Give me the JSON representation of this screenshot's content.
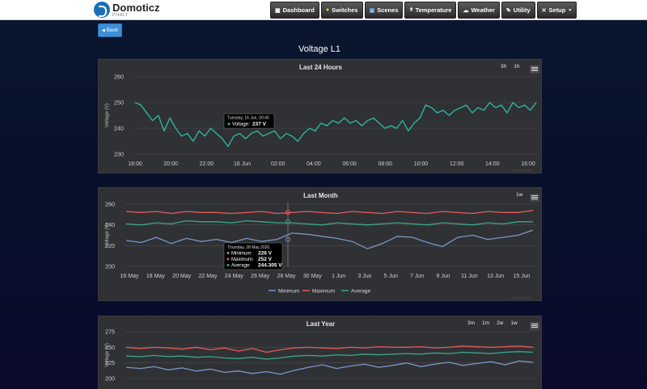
{
  "app": {
    "name": "Domoticz",
    "subtitle": "PI4ALT"
  },
  "nav": [
    {
      "label": "Dashboard",
      "icon": "dashboard-icon"
    },
    {
      "label": "Switches",
      "icon": "lightbulb-icon"
    },
    {
      "label": "Scenes",
      "icon": "scenes-icon"
    },
    {
      "label": "Temperature",
      "icon": "thermometer-icon"
    },
    {
      "label": "Weather",
      "icon": "cloud-icon"
    },
    {
      "label": "Utility",
      "icon": "utility-icon"
    },
    {
      "label": "Setup",
      "icon": "wrench-icon"
    }
  ],
  "back_label": "Back",
  "page_title": "Voltage L1",
  "panels": {
    "day": {
      "title": "Last 24 Hours",
      "ranges": [
        "3h",
        "1h"
      ],
      "credit": "Domoticz.com"
    },
    "month": {
      "title": "Last Month",
      "ranges": [
        "1w"
      ],
      "credit": "Domoticz.com"
    },
    "year": {
      "title": "Last Year",
      "ranges": [
        "3m",
        "1m",
        "2w",
        "1w"
      ]
    }
  },
  "chart_data": [
    {
      "type": "line",
      "title": "Last 24 Hours",
      "ylabel": "Voltage (V)",
      "ylim": [
        230,
        260
      ],
      "yticks": [
        260,
        250,
        240,
        230
      ],
      "xtick_labels": [
        "18:00",
        "20:00",
        "22:00",
        "16 Jun",
        "02:00",
        "04:00",
        "06:00",
        "08:00",
        "10:00",
        "12:00",
        "14:00",
        "16:00"
      ],
      "series": [
        {
          "color": "#2bb3a3",
          "values": [
            250,
            249,
            246,
            243,
            245,
            239,
            244,
            240,
            237,
            238,
            235,
            239,
            237,
            240,
            238,
            236,
            233,
            237,
            238,
            236,
            238,
            239,
            237,
            238,
            239,
            236,
            238,
            237,
            235,
            238,
            240,
            239,
            242,
            241,
            243,
            242,
            244,
            242,
            243,
            241,
            243,
            244,
            242,
            240,
            241,
            240,
            243,
            239,
            242,
            244,
            249,
            248,
            246,
            247,
            245,
            247,
            248,
            249,
            246,
            248,
            247,
            250,
            248,
            249,
            246,
            250,
            248,
            249,
            247,
            250
          ]
        }
      ],
      "tooltip": {
        "title": "Tuesday, 16 Jun, 00:40",
        "label": "Voltage:",
        "value": "237 V"
      }
    },
    {
      "type": "line",
      "title": "Last Month",
      "ylabel": "Voltage (V)",
      "ylim": [
        200,
        260
      ],
      "yticks": [
        260,
        240,
        220,
        200
      ],
      "xtick_labels": [
        "16 May",
        "18 May",
        "20 May",
        "22 May",
        "24 May",
        "26 May",
        "28 May",
        "30 May",
        "1 Jun",
        "3 Jun",
        "5 Jun",
        "7 Jun",
        "9 Jun",
        "11 Jun",
        "13 Jun",
        "15 Jun"
      ],
      "legend": [
        "Minimum",
        "Maximum",
        "Average"
      ],
      "series": [
        {
          "name": "Minimum",
          "color": "#7b96c8",
          "values": [
            225,
            223,
            228,
            222,
            227,
            224,
            226,
            223,
            227,
            224,
            226,
            232,
            231,
            229,
            227,
            224,
            217,
            222,
            229,
            228,
            223,
            219,
            228,
            230,
            226,
            228,
            230,
            235
          ]
        },
        {
          "name": "Maximum",
          "color": "#e5595b",
          "values": [
            253,
            252,
            253,
            251,
            253,
            252,
            252,
            251,
            252,
            253,
            251,
            252,
            253,
            252,
            251,
            253,
            252,
            251,
            253,
            252,
            251,
            253,
            252,
            251,
            253,
            252,
            252,
            254
          ]
        },
        {
          "name": "Average",
          "color": "#3aa88d",
          "values": [
            241,
            240,
            242,
            241,
            244,
            243,
            243,
            242,
            244,
            243,
            242,
            242,
            241,
            240,
            242,
            241,
            240,
            241,
            242,
            241,
            240,
            242,
            241,
            240,
            242,
            241,
            243,
            243
          ]
        }
      ],
      "tooltip": {
        "title": "Thursday, 28 May 2026",
        "rows": [
          {
            "label": "Minimum:",
            "value": "226 V"
          },
          {
            "label": "Maximum:",
            "value": "252 V"
          },
          {
            "label": "Average:",
            "value": "244.305 V"
          }
        ]
      }
    },
    {
      "type": "line",
      "title": "Last Year",
      "ylabel": "Voltage (V)",
      "ylim": [
        200,
        275
      ],
      "yticks": [
        275,
        250,
        225,
        200
      ],
      "series": [
        {
          "name": "Maximum",
          "color": "#e5595b",
          "values": [
            250,
            248,
            250,
            249,
            247,
            250,
            246,
            249,
            244,
            248,
            242,
            246,
            249,
            250,
            249,
            248,
            250,
            249,
            251,
            250,
            250,
            251,
            249,
            250,
            252,
            251,
            250,
            251,
            252,
            250
          ]
        },
        {
          "name": "Average",
          "color": "#3aa88d",
          "values": [
            236,
            235,
            237,
            235,
            236,
            234,
            235,
            233,
            232,
            234,
            231,
            233,
            236,
            237,
            236,
            238,
            237,
            239,
            238,
            239,
            240,
            239,
            241,
            240,
            242,
            241,
            240,
            242,
            243,
            242
          ]
        },
        {
          "name": "Minimum",
          "color": "#7b96c8",
          "values": [
            218,
            216,
            219,
            214,
            217,
            212,
            215,
            210,
            212,
            208,
            211,
            207,
            213,
            218,
            222,
            216,
            220,
            223,
            218,
            221,
            225,
            219,
            223,
            226,
            221,
            224,
            227,
            222,
            228,
            226
          ]
        }
      ]
    }
  ]
}
